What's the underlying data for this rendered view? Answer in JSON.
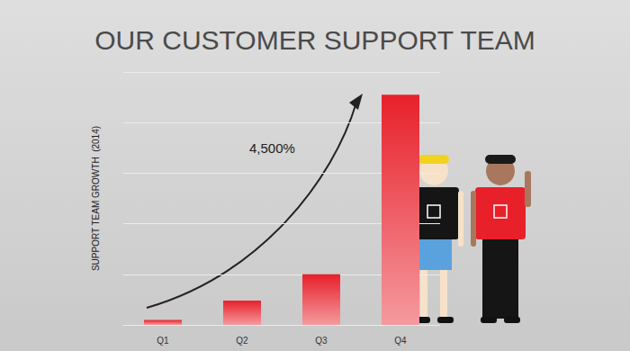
{
  "chart_data": {
    "type": "bar",
    "title": "OUR CUSTOMER SUPPORT TEAM",
    "y_label": "SUPPORT TEAM GROWTH  (2014)",
    "annotation": "4,500%",
    "categories": [
      "Q1",
      "Q2",
      "Q3",
      "Q4"
    ],
    "values": [
      0.1,
      0.48,
      1.0,
      4.55
    ],
    "color": "#e8202a",
    "ylim": [
      0,
      5
    ],
    "yticks": [
      0,
      1,
      2,
      3,
      4,
      5
    ],
    "grid": true,
    "tick_labels": "x"
  }
}
